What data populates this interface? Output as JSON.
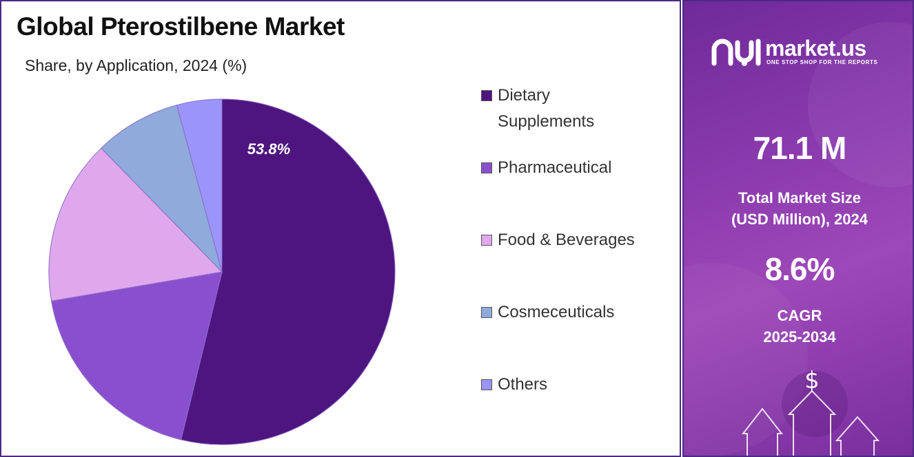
{
  "chart_data": {
    "type": "pie",
    "title": "Global Pterostilbene Market",
    "subtitle": "Share, by Application, 2024 (%)",
    "categories": [
      "Dietary Supplements",
      "Pharmaceutical",
      "Food & Beverages",
      "Cosmeceuticals",
      "Others"
    ],
    "values": [
      53.8,
      18.5,
      15.4,
      8.1,
      4.2
    ],
    "data_labels": [
      "53.8%",
      "",
      "",
      "",
      ""
    ],
    "colors": [
      "#4e1580",
      "#8a4fcf",
      "#dfa8ec",
      "#8faadb",
      "#9b94fb"
    ],
    "start_angle_deg": 0,
    "direction": "clockwise",
    "legend": {
      "placement": "right",
      "items": [
        {
          "label": "Dietary Supplements",
          "color": "#4e1580"
        },
        {
          "label": "Pharmaceutical",
          "color": "#8a4fcf"
        },
        {
          "label": "Food & Beverages",
          "color": "#dfa8ec"
        },
        {
          "label": "Cosmeceuticals",
          "color": "#8faadb"
        },
        {
          "label": "Others",
          "color": "#9b94fb"
        }
      ]
    }
  },
  "sidebar": {
    "brand_name": "market.us",
    "brand_tagline": "ONE STOP SHOP FOR THE REPORTS",
    "market_size_value": "71.1 M",
    "market_size_label_line1": "Total Market Size",
    "market_size_label_line2": "(USD Million), 2024",
    "cagr_value": "8.6%",
    "cagr_label_line1": "CAGR",
    "cagr_label_line2": "2025-2034",
    "currency_symbol": "$",
    "background_color": "#8a3aae",
    "logo_icon": "market-us-logo-icon",
    "decoration_icon": "growth-arrows-icon"
  }
}
